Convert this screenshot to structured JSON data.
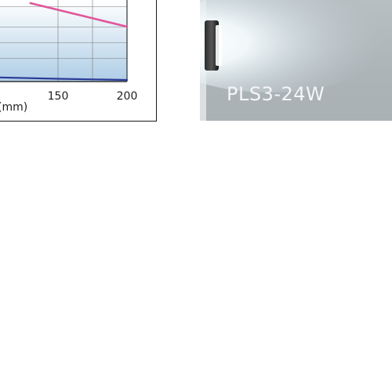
{
  "chart_data": {
    "type": "line",
    "x_tick_labels": [
      "150",
      "200"
    ],
    "x_unit_label": "(mm)",
    "xlim": [
      100,
      200
    ],
    "grid": true,
    "series": [
      {
        "color": "#e0559a",
        "points": [
          [
            130,
            1.0
          ],
          [
            200,
            0.7
          ]
        ]
      },
      {
        "color": "#2b3a96",
        "points": [
          [
            100,
            0.055
          ],
          [
            150,
            0.035
          ],
          [
            200,
            0.02
          ]
        ]
      }
    ]
  },
  "photo": {
    "caption": "PLS3-24W"
  },
  "colors": {
    "pink_series": "#e0559a",
    "blue_series": "#2b3a96",
    "plot_fill_top": "#ffffff",
    "plot_fill_bottom": "#aecde6",
    "photo_background": "#adb5b9"
  }
}
